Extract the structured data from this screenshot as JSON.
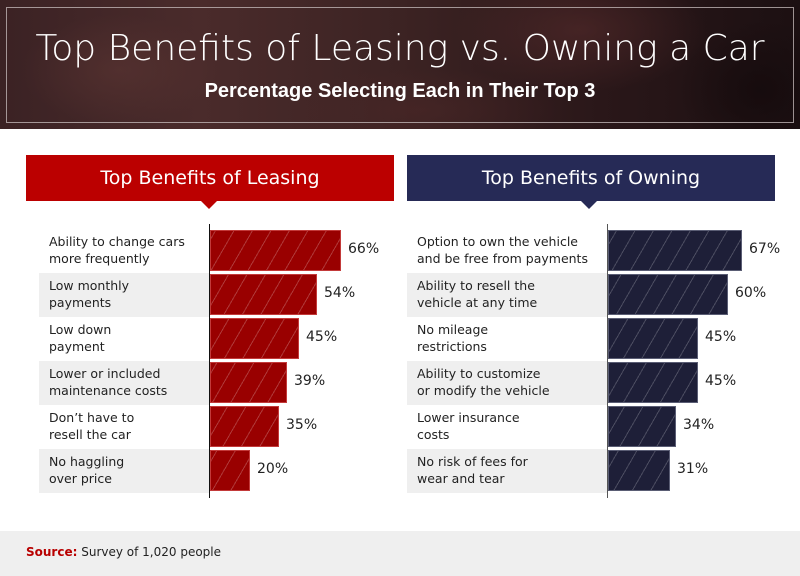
{
  "banner": {
    "title": "Top Benefits of Leasing vs. Owning a Car",
    "subtitle": "Percentage Selecting Each in Their Top 3"
  },
  "colors": {
    "leasing_header": "#bb0000",
    "leasing_bar": "#990000",
    "owning_header": "#262a56",
    "owning_bar": "#1e1f38",
    "row_shade": "#efefef",
    "source_label": "#b80000"
  },
  "leasing": {
    "header": "Top Benefits of Leasing",
    "rows": [
      {
        "line1": "Ability to change cars",
        "line2": "more frequently",
        "value": 66,
        "label": "66%"
      },
      {
        "line1": "Low monthly",
        "line2": "payments",
        "value": 54,
        "label": "54%"
      },
      {
        "line1": "Low down",
        "line2": "payment",
        "value": 45,
        "label": "45%"
      },
      {
        "line1": "Lower or included",
        "line2": "maintenance costs",
        "value": 39,
        "label": "39%"
      },
      {
        "line1": "Don’t have to",
        "line2": "resell the car",
        "value": 35,
        "label": "35%"
      },
      {
        "line1": "No haggling",
        "line2": "over price",
        "value": 20,
        "label": "20%"
      }
    ]
  },
  "owning": {
    "header": "Top Benefits of Owning",
    "rows": [
      {
        "line1": "Option to own the vehicle",
        "line2": "and be free from payments",
        "value": 67,
        "label": "67%"
      },
      {
        "line1": "Ability to resell the",
        "line2": "vehicle at any time",
        "value": 60,
        "label": "60%"
      },
      {
        "line1": "No mileage",
        "line2": "restrictions",
        "value": 45,
        "label": "45%"
      },
      {
        "line1": "Ability to customize",
        "line2": "or modify the vehicle",
        "value": 45,
        "label": "45%"
      },
      {
        "line1": "Lower insurance",
        "line2": "costs",
        "value": 34,
        "label": "34%"
      },
      {
        "line1": "No risk of fees for",
        "line2": "wear and tear",
        "value": 31,
        "label": "31%"
      }
    ]
  },
  "footer": {
    "source_label": "Source:",
    "source_text": " Survey of 1,020 people"
  },
  "chart_data": [
    {
      "type": "bar",
      "orientation": "horizontal",
      "title": "Top Benefits of Leasing",
      "categories": [
        "Ability to change cars more frequently",
        "Low monthly payments",
        "Low down payment",
        "Lower or included maintenance costs",
        "Don’t have to resell the car",
        "No haggling over price"
      ],
      "values": [
        66,
        54,
        45,
        39,
        35,
        20
      ],
      "unit": "%",
      "xlabel": "",
      "ylabel": "",
      "grid": false,
      "color": "#990000"
    },
    {
      "type": "bar",
      "orientation": "horizontal",
      "title": "Top Benefits of Owning",
      "categories": [
        "Option to own the vehicle and be free from payments",
        "Ability to resell the vehicle at any time",
        "No mileage restrictions",
        "Ability to customize or modify the vehicle",
        "Lower insurance costs",
        "No risk of fees for wear and tear"
      ],
      "values": [
        67,
        60,
        45,
        45,
        34,
        31
      ],
      "unit": "%",
      "xlabel": "",
      "ylabel": "",
      "grid": false,
      "color": "#1e1f38"
    }
  ]
}
